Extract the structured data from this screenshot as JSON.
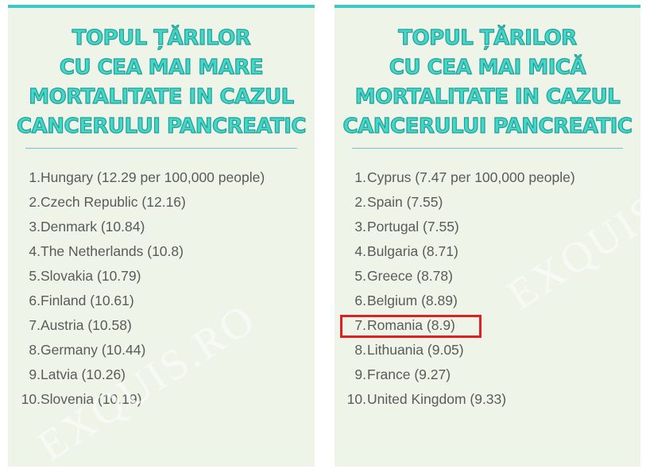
{
  "left_panel": {
    "title_lines": [
      "TOPUL ȚĂRILOR",
      "CU CEA MAI MARE",
      "MORTALITATE IN CAZUL",
      "CANCERULUI PANCREATIC"
    ],
    "items": [
      {
        "num": "1.",
        "text": "Hungary (12.29 per 100,000 people)"
      },
      {
        "num": "2.",
        "text": "Czech Republic (12.16)"
      },
      {
        "num": "3.",
        "text": "Denmark (10.84)"
      },
      {
        "num": "4.",
        "text": "The Netherlands (10.8)"
      },
      {
        "num": "5.",
        "text": "Slovakia (10.79)"
      },
      {
        "num": "6.",
        "text": "Finland (10.61)"
      },
      {
        "num": "7.",
        "text": "Austria (10.58)"
      },
      {
        "num": "8.",
        "text": "Germany (10.44)"
      },
      {
        "num": "9.",
        "text": "Latvia (10.26)"
      },
      {
        "num": "10.",
        "text": "Slovenia (10.19)"
      }
    ],
    "watermark": "EXQUIS.RO"
  },
  "right_panel": {
    "title_lines": [
      "TOPUL ȚĂRILOR",
      "CU CEA MAI MICĂ",
      "MORTALITATE IN CAZUL",
      "CANCERULUI PANCREATIC"
    ],
    "items": [
      {
        "num": "1.",
        "text": "Cyprus (7.47 per 100,000 people)"
      },
      {
        "num": "2.",
        "text": "Spain (7.55)"
      },
      {
        "num": "3.",
        "text": "Portugal (7.55)"
      },
      {
        "num": "4.",
        "text": "Bulgaria (8.71)"
      },
      {
        "num": "5.",
        "text": "Greece (8.78)"
      },
      {
        "num": "6.",
        "text": "Belgium (8.89)"
      },
      {
        "num": "7.",
        "text": "Romania (8.9)",
        "highlighted": true
      },
      {
        "num": "8.",
        "text": "Lithuania (9.05)"
      },
      {
        "num": "9.",
        "text": "France (9.27)"
      },
      {
        "num": "10.",
        "text": "United Kingdom (9.33)"
      }
    ],
    "watermark": "EXQUIS.RO"
  },
  "colors": {
    "panel_background": "#eef5e8",
    "accent": "#40c8c2",
    "title_fill": "#45d6c8",
    "list_text": "#5a5a5a",
    "highlight": "#e02020"
  }
}
